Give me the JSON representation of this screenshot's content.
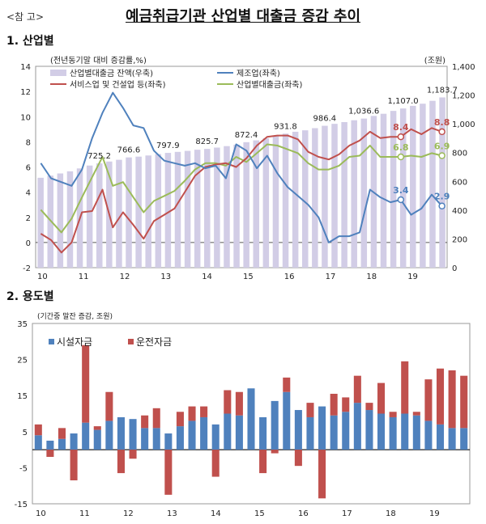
{
  "header": {
    "ref": "<참  고>",
    "title": "예금취급기관 산업별 대출금 증감 추이"
  },
  "sections": {
    "s1": "1. 산업별",
    "s2": "2. 용도별"
  },
  "colors": {
    "balance_bar": "#d2cde6",
    "manufacturing": "#4f81bd",
    "service": "#c0504d",
    "industry_total": "#9bbb59",
    "facility": "#4f81bd",
    "operating": "#c0504d"
  },
  "chart_data": [
    {
      "type": "line",
      "unit_left": "(전년동기말 대비 증감률,%)",
      "unit_right": "(조원)",
      "x_ticks": [
        "10",
        "11",
        "12",
        "13",
        "14",
        "15",
        "16",
        "17",
        "18",
        "19"
      ],
      "ylim_left": [
        -2,
        14
      ],
      "yticks_left": [
        "-2",
        "0",
        "2",
        "4",
        "6",
        "8",
        "10",
        "12",
        "14"
      ],
      "ylim_right": [
        0,
        1400
      ],
      "yticks_right": [
        "0",
        "200",
        "400",
        "600",
        "800",
        "1,000",
        "1,200",
        "1,400"
      ],
      "legend": {
        "balance": "산업별대출금 잔액(우축)",
        "manufacturing": "제조업(좌축)",
        "service": "서비스업 및 건설업 등(좌축)",
        "total": "산업별대출금(좌축)"
      },
      "balance_series": [
        625,
        640,
        655,
        670,
        690,
        710,
        725.2,
        738,
        750,
        766.6,
        772,
        780,
        790,
        797.9,
        805,
        812,
        820,
        825.7,
        835,
        845,
        855,
        872.4,
        885,
        900,
        915,
        931.8,
        945,
        955,
        970,
        986.4,
        1000,
        1012,
        1025,
        1036.6,
        1055,
        1070,
        1090,
        1107.0,
        1125,
        1140,
        1160,
        1183.7
      ],
      "balance_labels": [
        {
          "i": 6,
          "text": "725.2"
        },
        {
          "i": 9,
          "text": "766.6"
        },
        {
          "i": 13,
          "text": "797.9"
        },
        {
          "i": 17,
          "text": "825.7"
        },
        {
          "i": 21,
          "text": "872.4"
        },
        {
          "i": 25,
          "text": "931.8"
        },
        {
          "i": 29,
          "text": "986.4"
        },
        {
          "i": 33,
          "text": "1,036.6"
        },
        {
          "i": 37,
          "text": "1,107.0"
        },
        {
          "i": 41,
          "text": "1,183.7"
        }
      ],
      "manufacturing": [
        6.3,
        5.1,
        4.8,
        4.5,
        5.8,
        8.3,
        10.3,
        11.9,
        10.7,
        9.3,
        9.1,
        7.3,
        6.5,
        6.3,
        6.1,
        6.3,
        5.9,
        6.1,
        5.1,
        7.8,
        7.3,
        5.9,
        6.9,
        5.5,
        4.4,
        3.7,
        3.0,
        2.0,
        0.0,
        0.5,
        0.5,
        0.8,
        4.2,
        3.6,
        3.2,
        3.4,
        2.2,
        2.7,
        3.8,
        2.9
      ],
      "service": [
        0.7,
        0.2,
        -0.8,
        0.0,
        2.4,
        2.5,
        4.2,
        1.2,
        2.4,
        1.4,
        0.3,
        1.7,
        2.2,
        2.7,
        4.0,
        5.3,
        6.0,
        6.2,
        6.3,
        6.0,
        6.7,
        7.7,
        8.4,
        8.5,
        8.5,
        8.2,
        7.2,
        6.8,
        6.6,
        7.0,
        7.7,
        8.1,
        8.8,
        8.3,
        8.4,
        8.4,
        9.0,
        8.6,
        9.1,
        8.8
      ],
      "industry_total": [
        2.6,
        1.7,
        0.8,
        1.9,
        3.6,
        5.2,
        6.8,
        4.5,
        4.8,
        3.6,
        2.4,
        3.3,
        3.7,
        4.1,
        4.9,
        5.8,
        6.3,
        6.3,
        6.1,
        6.8,
        6.4,
        7.1,
        7.8,
        7.7,
        7.4,
        7.1,
        6.3,
        5.8,
        5.8,
        6.1,
        6.8,
        6.9,
        7.7,
        6.8,
        6.8,
        6.8,
        6.9,
        6.8,
        7.1,
        6.9
      ],
      "endpoint_labels": {
        "service_a": "8.4",
        "service_b": "8.8",
        "total_a": "6.8",
        "total_b": "6.9",
        "mfg_a": "3.4",
        "mfg_b": "2.9"
      }
    },
    {
      "type": "bar",
      "unit": "(기간중 말잔 증감, 조원)",
      "x_ticks": [
        "10",
        "11",
        "12",
        "13",
        "14",
        "15",
        "16",
        "17",
        "18",
        "19"
      ],
      "ylim": [
        -15,
        35
      ],
      "yticks": [
        "-15",
        "-5",
        "5",
        "15",
        "25",
        "35"
      ],
      "series": [
        {
          "name": "시설자금",
          "values": [
            4,
            2.5,
            3,
            4.5,
            7.5,
            5.5,
            8,
            9,
            8.5,
            6,
            6,
            4.5,
            6.5,
            8,
            9,
            7,
            10,
            9.5,
            17,
            9,
            13.5,
            16,
            11,
            9,
            12,
            9.5,
            10.5,
            13,
            11,
            10,
            9,
            10,
            9.5,
            8,
            7,
            6,
            6
          ]
        },
        {
          "name": "운전자금",
          "values": [
            3,
            -2,
            3,
            -8.5,
            21.5,
            1,
            8,
            -6.5,
            -2.5,
            3.5,
            5.5,
            -12.5,
            4,
            4,
            3,
            -7.5,
            6.5,
            6.5,
            0,
            -6.5,
            -1,
            4,
            -4.5,
            4,
            -13.5,
            6,
            4,
            7.5,
            2,
            8.5,
            1.5,
            14.5,
            1,
            11.5,
            15.5,
            16,
            14.5
          ]
        }
      ]
    }
  ]
}
